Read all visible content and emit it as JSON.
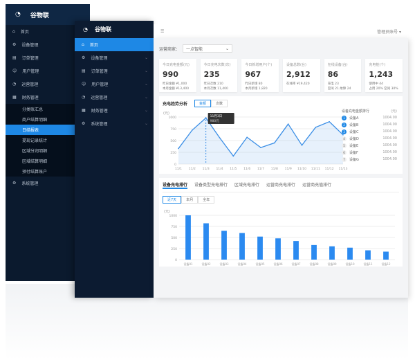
{
  "brand": "谷物联",
  "back_sidebar": {
    "items": [
      "首页",
      "设备管理",
      "订单管理",
      "用户管理",
      "运营管理",
      "财务管理"
    ],
    "sub_items": [
      "分类账汇总",
      "商户结算明细",
      "日结报表",
      "提现记录统计",
      "区域分润明细",
      "区域结算明细",
      "预付结算账户"
    ],
    "active_sub": "日结报表",
    "last_item": "系统管理"
  },
  "front_sidebar": {
    "items": [
      "首页",
      "设备管理",
      "订单管理",
      "用户管理",
      "运营管理",
      "财务管理",
      "系统管理"
    ],
    "active": "首页"
  },
  "topbar": {
    "menu_icon": "hamburger-icon",
    "user": "管理员账号"
  },
  "filter": {
    "label": "运营商家：",
    "value": "一点智能"
  },
  "stats": [
    {
      "title": "今日充电金额(元)",
      "value": "990",
      "sub1": "昨日金额 ¥1,000",
      "sub2": "本月金额 ¥13,400"
    },
    {
      "title": "今日充电次数(次)",
      "value": "235",
      "sub1": "昨日次数 210",
      "sub2": "本月次数 11,400"
    },
    {
      "title": "今日新增用户(个)",
      "value": "967",
      "sub1": "昨日新增 80",
      "sub2": "本月新增 1,820"
    },
    {
      "title": "设备总数(台)",
      "value": "2,912",
      "sub1": "",
      "sub2": "在线率 ¥19,420"
    },
    {
      "title": "在线设备(台)",
      "value": "86",
      "sub1": "充电 23",
      "sub2": "空闲 21  故障 24"
    },
    {
      "title": "充电桩(个)",
      "value": "1,243",
      "sub1": "使用中 44",
      "sub2": "占用 20%  空闲 30%"
    }
  ],
  "line_panel": {
    "title": "充电趋势分析",
    "tabs": [
      "金额",
      "次数"
    ],
    "active_tab": "金额",
    "tooltip": {
      "date": "11月3日",
      "value": "980元"
    }
  },
  "ranking": {
    "title": "设备充电金额排行",
    "col": "(元)",
    "items": [
      {
        "name": "设备A",
        "value": "1004.00"
      },
      {
        "name": "设备B",
        "value": "1004.00"
      },
      {
        "name": "设备C",
        "value": "1004.00"
      },
      {
        "name": "设备D",
        "value": "1004.00"
      },
      {
        "name": "设备E",
        "value": "1004.00"
      },
      {
        "name": "设备F",
        "value": "1004.00"
      },
      {
        "name": "设备G",
        "value": "1004.00"
      }
    ]
  },
  "bar_panel": {
    "tabs": [
      "设备充电排行",
      "设备类型充电排行",
      "区域充电排行",
      "运营商充电排行",
      "运营商充值排行"
    ],
    "buttons": [
      "近7天",
      "本月",
      "全年"
    ],
    "active_button": "近7天"
  },
  "chart_data": [
    {
      "type": "line",
      "ylabel": "(元)",
      "ylim": [
        0,
        1000
      ],
      "yticks": [
        0,
        250,
        500,
        750,
        1000
      ],
      "categories": [
        "11/1",
        "11/2",
        "11/3",
        "11/4",
        "11/5",
        "11/6",
        "11/7",
        "11/8",
        "11/9",
        "11/10",
        "11/11",
        "11/12",
        "11/13"
      ],
      "values": [
        330,
        720,
        980,
        560,
        170,
        570,
        350,
        450,
        850,
        400,
        780,
        900,
        620
      ],
      "color": "#3a8ee6",
      "area": true
    },
    {
      "type": "bar",
      "ylabel": "(元)",
      "ylim": [
        0,
        1000
      ],
      "yticks": [
        0,
        250,
        500,
        750,
        1000
      ],
      "categories": [
        "设备01",
        "设备02",
        "设备03",
        "设备04",
        "设备05",
        "设备06",
        "设备07",
        "设备08",
        "设备09",
        "设备10",
        "设备11",
        "设备12"
      ],
      "values": [
        1000,
        820,
        650,
        600,
        520,
        480,
        420,
        330,
        300,
        270,
        210,
        180
      ],
      "color": "#2b8af0"
    }
  ]
}
